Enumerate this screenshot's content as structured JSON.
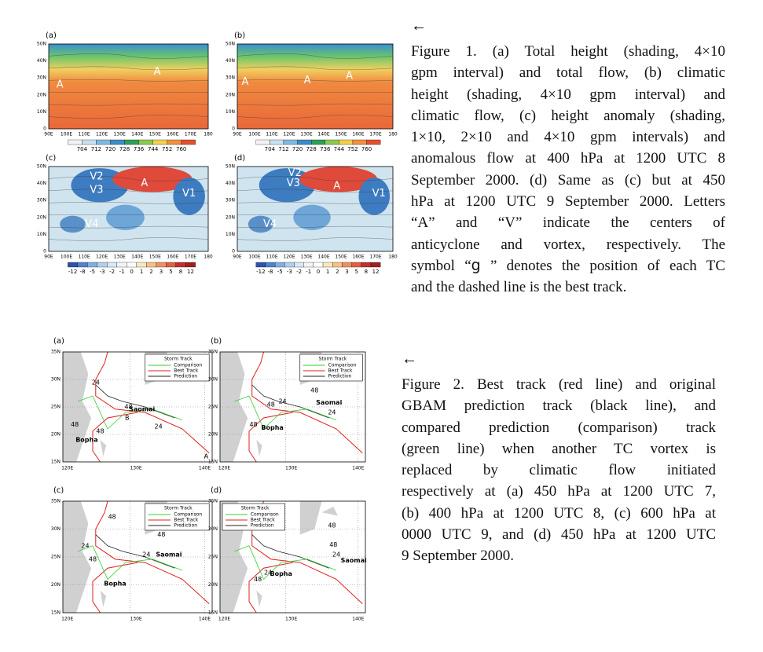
{
  "figure1": {
    "panels": [
      {
        "label": "(a)",
        "letters": [
          "A",
          "A"
        ]
      },
      {
        "label": "(b)",
        "letters": [
          "A",
          "A",
          "A"
        ]
      },
      {
        "label": "(c)",
        "letters": [
          "V2",
          "V3",
          "A",
          "V1",
          "V4"
        ]
      },
      {
        "label": "(d)",
        "letters": [
          "V2",
          "V3",
          "A",
          "V1",
          "V4"
        ]
      }
    ],
    "lat_ticks": [
      "50N",
      "40N",
      "30N",
      "20N",
      "10N",
      "0"
    ],
    "lon_ticks": [
      "90E",
      "100E",
      "110E",
      "120E",
      "130E",
      "140E",
      "150E",
      "160E",
      "170E",
      "180"
    ],
    "colorbar_top": [
      "704",
      "712",
      "720",
      "728",
      "736",
      "744",
      "752",
      "760"
    ],
    "colorbar_bottom": [
      "-12",
      "-8",
      "-5",
      "-3",
      "-2",
      "-1",
      "0",
      "1",
      "2",
      "3",
      "5",
      "8",
      "12"
    ],
    "arrow": "←",
    "caption": [
      "Figure 1. (a) Total height (shading, 4×10",
      "gpm interval) and total flow, (b) climatic",
      "height (shading, 4×10 gpm interval) and",
      "climatic flow, (c) height anomaly (shading,",
      "1×10, 2×10 and 4×10 gpm intervals) and",
      "anomalous flow at 400 hPa at 1200 UTC 8",
      "September 2000. (d) Same as (c) but at 450",
      "hPa at 1200 UTC 9 September 2000. Letters",
      "“A” and “V” indicate the centers of",
      "anticyclone and vortex, respectively. The",
      "symbol “ց ” denotes the position of each TC",
      "and the dashed line is the best track."
    ]
  },
  "figure2": {
    "panels": [
      {
        "label": "(a)",
        "notes": [
          "24",
          "48",
          "Saomai",
          "B",
          "24",
          "A",
          "48",
          "Bopha",
          "48"
        ]
      },
      {
        "label": "(b)",
        "notes": [
          "48",
          "48",
          "24",
          "Saomai",
          "24",
          "48",
          "Bopha"
        ]
      },
      {
        "label": "(c)",
        "notes": [
          "48",
          "48",
          "24",
          "48",
          "Saomai",
          "24",
          "Bopha"
        ]
      },
      {
        "label": "(d)",
        "notes": [
          "48",
          "48",
          "24",
          "Saomai",
          "24",
          "48",
          "Bopha"
        ]
      }
    ],
    "lat_ticks": [
      "35N",
      "30N",
      "25N",
      "20N",
      "15N"
    ],
    "lon_ticks": [
      "120E",
      "130E",
      "140E"
    ],
    "legend": {
      "title": "Storm Track",
      "entries": [
        "Comparison",
        "Best Track",
        "Prediction"
      ]
    },
    "arrow": "←",
    "caption": [
      "Figure 2. Best track (red line) and original",
      "GBAM prediction track (black line), and",
      "compared prediction (comparison) track",
      "(green line) when another TC vortex is",
      "replaced by climatic flow initiated",
      "respectively at (a) 450 hPa at 1200 UTC 7,",
      "(b) 400 hPa at 1200 UTC 8, (c) 600 hPa at",
      "0000 UTC 9, and (d) 450 hPa at 1200 UTC",
      "9 September 2000."
    ]
  }
}
